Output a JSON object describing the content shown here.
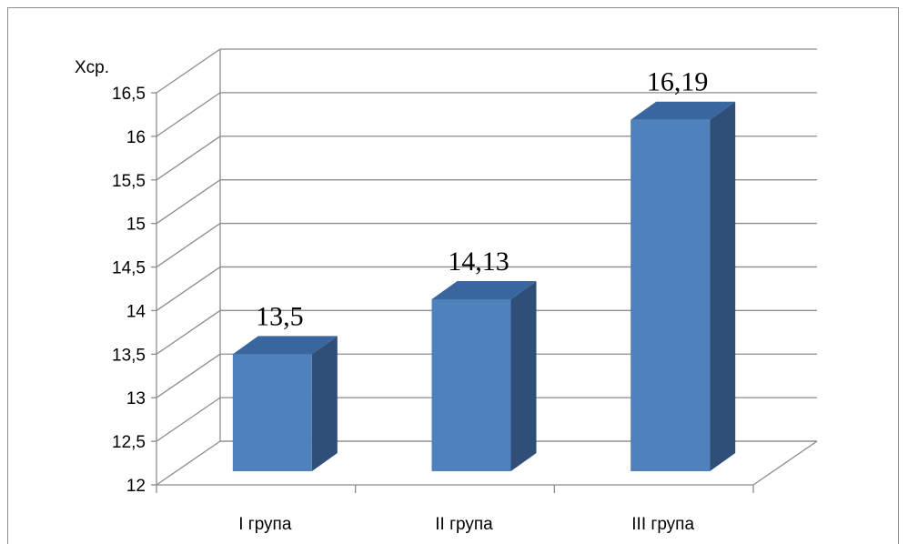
{
  "chart_data": {
    "type": "bar",
    "style": "3d-column",
    "title": "",
    "ylabel": "Хср.",
    "xlabel": "",
    "ylim": [
      12,
      16.5
    ],
    "yticks": [
      "12",
      "12,5",
      "13",
      "13,5",
      "14",
      "14,5",
      "15",
      "15,5",
      "16",
      "16,5"
    ],
    "categories": [
      "І група",
      "ІІ група",
      "ІІІ група"
    ],
    "values": [
      13.5,
      14.13,
      16.19
    ],
    "data_labels": [
      "13,5",
      "14,13",
      "16,19"
    ],
    "grid": true,
    "legend": "none",
    "colors": {
      "bar_front": "#4F81BD",
      "bar_side": "#2F4F78",
      "bar_top": "#3A66A0",
      "grid": "#8c8c8c"
    }
  }
}
